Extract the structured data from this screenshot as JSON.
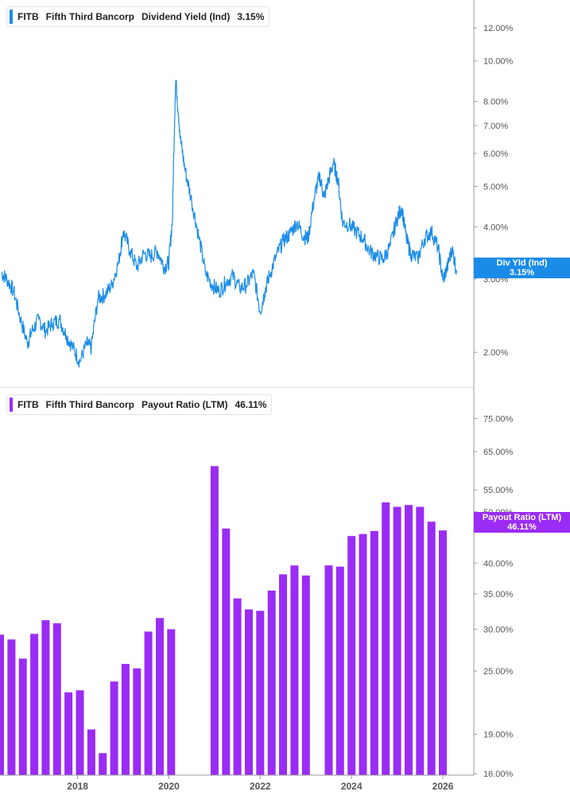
{
  "colors": {
    "yield_line": "#1a8ce8",
    "payout_bar": "#9a2cf5",
    "grid_axis": "#999999",
    "divider": "#d8d8d8"
  },
  "top_legend": {
    "ticker": "FITB",
    "company": "Fifth Third Bancorp",
    "metric": "Dividend Yield (Ind)",
    "value": "3.15%"
  },
  "top_tag": {
    "line1": "Div Yld (Ind)",
    "line2": "3.15%"
  },
  "bottom_legend": {
    "ticker": "FITB",
    "company": "Fifth Third Bancorp",
    "metric": "Payout Ratio (LTM)",
    "value": "46.11%"
  },
  "bottom_tag": {
    "line1": "Payout Ratio (LTM)",
    "line2": "46.11%"
  },
  "chart_data": [
    {
      "type": "line",
      "series": [
        {
          "name": "Dividend Yield (Ind)",
          "color": "#1a8ce8"
        }
      ],
      "scale": "log",
      "ylim": [
        1.65,
        14.0
      ],
      "y_ticks": [
        {
          "value": 12.0,
          "label": "12.00%"
        },
        {
          "value": 10.0,
          "label": "10.00%"
        },
        {
          "value": 8.0,
          "label": "8.00%"
        },
        {
          "value": 7.0,
          "label": "7.00%"
        },
        {
          "value": 6.0,
          "label": "6.00%"
        },
        {
          "value": 5.0,
          "label": "5.00%"
        },
        {
          "value": 4.0,
          "label": "4.00%"
        },
        {
          "value": 3.0,
          "label": "3.00%"
        },
        {
          "value": 2.0,
          "label": "2.00%"
        }
      ],
      "x": [
        2016.33,
        2016.45,
        2016.6,
        2016.75,
        2016.9,
        2017.0,
        2017.15,
        2017.3,
        2017.45,
        2017.6,
        2017.75,
        2017.9,
        2018.05,
        2018.2,
        2018.3,
        2018.45,
        2018.6,
        2018.75,
        2018.9,
        2019.0,
        2019.15,
        2019.3,
        2019.45,
        2019.6,
        2019.75,
        2019.9,
        2020.0,
        2020.08,
        2020.15,
        2020.25,
        2020.35,
        2020.5,
        2020.65,
        2020.8,
        2020.95,
        2021.1,
        2021.25,
        2021.4,
        2021.55,
        2021.7,
        2021.85,
        2022.0,
        2022.1,
        2022.2,
        2022.35,
        2022.5,
        2022.65,
        2022.8,
        2022.95,
        2023.05,
        2023.2,
        2023.3,
        2023.4,
        2023.5,
        2023.6,
        2023.7,
        2023.8,
        2023.95,
        2024.1,
        2024.25,
        2024.4,
        2024.55,
        2024.7,
        2024.85,
        2025.0,
        2025.1,
        2025.2,
        2025.3,
        2025.45,
        2025.6,
        2025.75,
        2025.9,
        2026.0,
        2026.1,
        2026.2,
        2026.3
      ],
      "y": [
        3.1,
        3.0,
        2.8,
        2.4,
        2.1,
        2.25,
        2.4,
        2.25,
        2.35,
        2.4,
        2.2,
        2.05,
        1.9,
        2.1,
        2.05,
        2.7,
        2.75,
        2.9,
        3.3,
        3.9,
        3.5,
        3.2,
        3.45,
        3.4,
        3.5,
        3.2,
        3.3,
        4.2,
        9.0,
        6.5,
        5.5,
        4.6,
        3.8,
        3.1,
        2.9,
        2.8,
        2.95,
        3.05,
        2.85,
        2.9,
        3.1,
        2.5,
        2.8,
        3.05,
        3.4,
        3.7,
        3.85,
        4.1,
        3.8,
        3.75,
        4.8,
        5.3,
        4.7,
        5.2,
        5.7,
        5.2,
        4.1,
        4.05,
        3.9,
        3.75,
        3.5,
        3.4,
        3.35,
        3.6,
        4.2,
        4.45,
        3.75,
        3.45,
        3.35,
        3.75,
        3.9,
        3.55,
        2.98,
        3.2,
        3.55,
        3.15
      ]
    },
    {
      "type": "bar",
      "series": [
        {
          "name": "Payout Ratio (LTM)",
          "color": "#9a2cf5"
        }
      ],
      "scale": "log",
      "ylim": [
        15.9,
        86.0
      ],
      "y_ticks": [
        {
          "value": 75,
          "label": "75.00%"
        },
        {
          "value": 65,
          "label": "65.00%"
        },
        {
          "value": 55,
          "label": "55.00%"
        },
        {
          "value": 50,
          "label": "50.00%"
        },
        {
          "value": 40,
          "label": "40.00%"
        },
        {
          "value": 35,
          "label": "35.00%"
        },
        {
          "value": 30,
          "label": "30.00%"
        },
        {
          "value": 25,
          "label": "25.00%"
        },
        {
          "value": 19,
          "label": "19.00%"
        },
        {
          "value": 16,
          "label": "16.00%"
        }
      ],
      "x_ticks": [
        {
          "value": 2018,
          "label": "2018"
        },
        {
          "value": 2020,
          "label": "2020"
        },
        {
          "value": 2022,
          "label": "2022"
        },
        {
          "value": 2024,
          "label": "2024"
        },
        {
          "value": 2026,
          "label": "2026"
        }
      ],
      "x": [
        2016.3,
        2016.55,
        2016.8,
        2017.05,
        2017.3,
        2017.55,
        2017.8,
        2018.05,
        2018.3,
        2018.55,
        2018.8,
        2019.05,
        2019.3,
        2019.55,
        2019.8,
        2020.05,
        2021.0,
        2021.25,
        2021.5,
        2021.75,
        2022.0,
        2022.25,
        2022.5,
        2022.75,
        2023.0,
        2023.5,
        2023.75,
        2024.0,
        2024.25,
        2024.5,
        2024.75,
        2025.0,
        2025.25,
        2025.5,
        2025.75,
        2026.0
      ],
      "values": [
        29.3,
        28.7,
        26.4,
        29.4,
        31.2,
        30.8,
        22.8,
        23.0,
        19.4,
        17.5,
        23.9,
        25.8,
        25.3,
        29.7,
        31.5,
        30.0,
        61.0,
        46.5,
        34.3,
        32.7,
        32.5,
        35.5,
        38.1,
        39.6,
        37.9,
        39.6,
        39.4,
        45.0,
        45.4,
        46.0,
        52.1,
        51.1,
        51.5,
        51.1,
        47.9,
        46.11
      ]
    }
  ]
}
